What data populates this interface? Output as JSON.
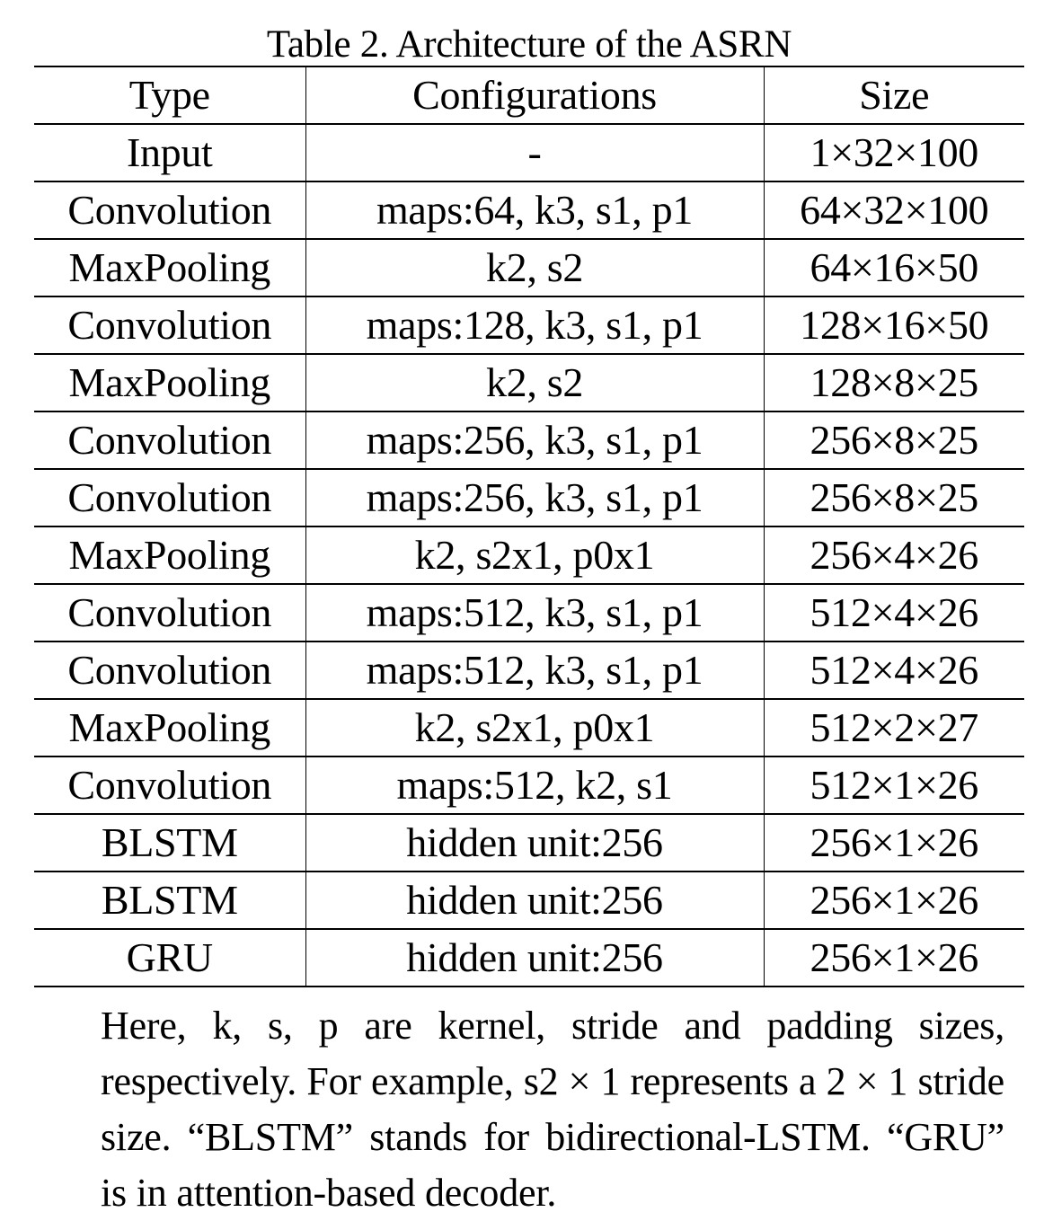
{
  "caption": "Table 2. Architecture of the ASRN",
  "table": {
    "headers": [
      "Type",
      "Configurations",
      "Size"
    ],
    "rows": [
      [
        "Input",
        "-",
        "1×32×100"
      ],
      [
        "Convolution",
        "maps:64, k3, s1, p1",
        "64×32×100"
      ],
      [
        "MaxPooling",
        "k2, s2",
        "64×16×50"
      ],
      [
        "Convolution",
        "maps:128, k3, s1, p1",
        "128×16×50"
      ],
      [
        "MaxPooling",
        "k2, s2",
        "128×8×25"
      ],
      [
        "Convolution",
        "maps:256, k3, s1, p1",
        "256×8×25"
      ],
      [
        "Convolution",
        "maps:256, k3, s1, p1",
        "256×8×25"
      ],
      [
        "MaxPooling",
        "k2, s2x1, p0x1",
        "256×4×26"
      ],
      [
        "Convolution",
        "maps:512, k3, s1, p1",
        "512×4×26"
      ],
      [
        "Convolution",
        "maps:512, k3, s1, p1",
        "512×4×26"
      ],
      [
        "MaxPooling",
        "k2, s2x1, p0x1",
        "512×2×27"
      ],
      [
        "Convolution",
        "maps:512, k2, s1",
        "512×1×26"
      ],
      [
        "BLSTM",
        "hidden unit:256",
        "256×1×26"
      ],
      [
        "BLSTM",
        "hidden unit:256",
        "256×1×26"
      ],
      [
        "GRU",
        "hidden unit:256",
        "256×1×26"
      ]
    ]
  },
  "note": "Here, k, s, p are kernel, stride and padding sizes, respectively. For example, s2 × 1 represents a 2 × 1 stride size.  “BLSTM” stands for bidirectional-LSTM. “GRU” is in attention-based decoder."
}
